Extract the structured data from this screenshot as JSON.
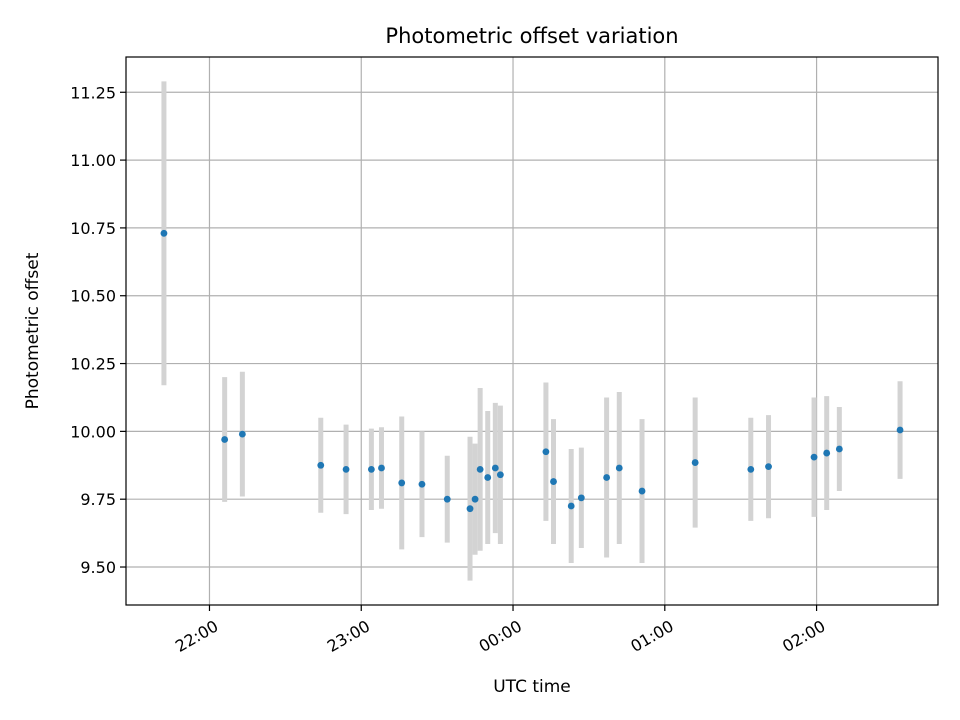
{
  "chart_data": {
    "type": "scatter",
    "title": "Photometric offset variation",
    "xlabel": "UTC time",
    "ylabel": "Photometric offset",
    "x_unit": "UTC time (HH:MM)",
    "xlim": [
      "21:27",
      "02:48"
    ],
    "ylim": [
      9.36,
      11.38
    ],
    "x_ticks": [
      "22:00",
      "23:00",
      "00:00",
      "01:00",
      "02:00"
    ],
    "y_ticks": [
      "9.50",
      "9.75",
      "10.00",
      "10.25",
      "10.50",
      "10.75",
      "11.00",
      "11.25"
    ],
    "grid": true,
    "marker_color": "#1f77b4",
    "errorbar_color": "#d3d3d3",
    "points": [
      {
        "time": "21:42",
        "y": 10.73,
        "err": 0.56
      },
      {
        "time": "22:06",
        "y": 9.97,
        "err": 0.23
      },
      {
        "time": "22:13",
        "y": 9.99,
        "err": 0.23
      },
      {
        "time": "22:44",
        "y": 9.875,
        "err": 0.175
      },
      {
        "time": "22:54",
        "y": 9.86,
        "err": 0.165
      },
      {
        "time": "23:04",
        "y": 9.86,
        "err": 0.15
      },
      {
        "time": "23:08",
        "y": 9.865,
        "err": 0.15
      },
      {
        "time": "23:16",
        "y": 9.81,
        "err": 0.245
      },
      {
        "time": "23:24",
        "y": 9.805,
        "err": 0.195
      },
      {
        "time": "23:34",
        "y": 9.75,
        "err": 0.16
      },
      {
        "time": "23:43",
        "y": 9.715,
        "err": 0.265
      },
      {
        "time": "23:45",
        "y": 9.75,
        "err": 0.205
      },
      {
        "time": "23:47",
        "y": 9.86,
        "err": 0.3
      },
      {
        "time": "23:50",
        "y": 9.83,
        "err": 0.245
      },
      {
        "time": "23:53",
        "y": 9.865,
        "err": 0.24
      },
      {
        "time": "23:55",
        "y": 9.84,
        "err": 0.255
      },
      {
        "time": "00:13",
        "y": 9.925,
        "err": 0.255
      },
      {
        "time": "00:16",
        "y": 9.815,
        "err": 0.23
      },
      {
        "time": "00:23",
        "y": 9.725,
        "err": 0.21
      },
      {
        "time": "00:27",
        "y": 9.755,
        "err": 0.185
      },
      {
        "time": "00:37",
        "y": 9.83,
        "err": 0.295
      },
      {
        "time": "00:42",
        "y": 9.865,
        "err": 0.28
      },
      {
        "time": "00:51",
        "y": 9.78,
        "err": 0.265
      },
      {
        "time": "01:12",
        "y": 9.885,
        "err": 0.24
      },
      {
        "time": "01:34",
        "y": 9.86,
        "err": 0.19
      },
      {
        "time": "01:41",
        "y": 9.87,
        "err": 0.19
      },
      {
        "time": "01:59",
        "y": 9.905,
        "err": 0.22
      },
      {
        "time": "02:04",
        "y": 9.92,
        "err": 0.21
      },
      {
        "time": "02:09",
        "y": 9.935,
        "err": 0.155
      },
      {
        "time": "02:33",
        "y": 10.005,
        "err": 0.18
      }
    ]
  }
}
